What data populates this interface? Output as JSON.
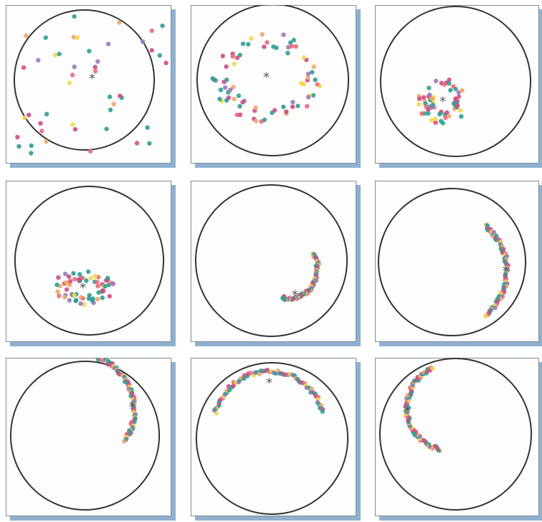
{
  "figure": {
    "panel_count": 9,
    "layout": "3x3 grid",
    "colors": {
      "teal": "#2f9e93",
      "magenta": "#cf4b84",
      "pink": "#ec6a7a",
      "yellow": "#f2d84c",
      "violet": "#9b78bd",
      "peach": "#f2a46d",
      "circle": "#333333",
      "center_marker": "#555555",
      "shadow": "#8fb1cf"
    },
    "center_marker_symbol": "*",
    "palette": [
      "teal",
      "magenta",
      "pink",
      "yellow",
      "violet",
      "teal",
      "peach",
      "teal",
      "magenta"
    ],
    "panels": [
      {
        "title": "",
        "pattern": "scattered"
      },
      {
        "title": "",
        "pattern": "ring"
      },
      {
        "title": "",
        "pattern": "small ring"
      },
      {
        "title": "",
        "pattern": "ring lower"
      },
      {
        "title": "",
        "pattern": "arc lower right"
      },
      {
        "title": "",
        "pattern": "arc right"
      },
      {
        "title": "",
        "pattern": "arc upper right"
      },
      {
        "title": "",
        "pattern": "arc top"
      },
      {
        "title": "",
        "pattern": "arc left"
      }
    ]
  }
}
